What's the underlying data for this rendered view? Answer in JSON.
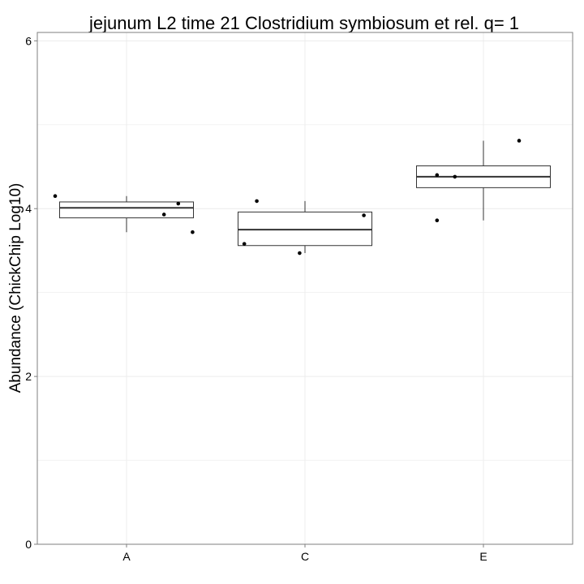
{
  "chart_data": {
    "type": "boxplot",
    "title": "jejunum L2 time 21 Clostridium symbiosum et rel. q= 1",
    "xlabel": "",
    "ylabel": "Abundance (ChickChip Log10)",
    "ylim": [
      0,
      6.1
    ],
    "yticks": [
      0,
      2,
      4,
      6
    ],
    "grid": true,
    "categories": [
      "A",
      "C",
      "E"
    ],
    "boxes": [
      {
        "category": "A",
        "whisker_low": 3.72,
        "q1": 3.89,
        "median": 4.01,
        "q3": 4.08,
        "whisker_high": 4.15
      },
      {
        "category": "C",
        "whisker_low": 3.47,
        "q1": 3.56,
        "median": 3.75,
        "q3": 3.96,
        "whisker_high": 4.09
      },
      {
        "category": "E",
        "whisker_low": 3.86,
        "q1": 4.25,
        "median": 4.38,
        "q3": 4.51,
        "whisker_high": 4.81
      }
    ],
    "points": [
      {
        "category": "A",
        "offset": -0.4,
        "y": 4.15
      },
      {
        "category": "A",
        "offset": 0.21,
        "y": 3.93
      },
      {
        "category": "A",
        "offset": 0.29,
        "y": 4.06
      },
      {
        "category": "A",
        "offset": 0.37,
        "y": 3.72
      },
      {
        "category": "C",
        "offset": -0.34,
        "y": 3.58
      },
      {
        "category": "C",
        "offset": -0.27,
        "y": 4.09
      },
      {
        "category": "C",
        "offset": -0.03,
        "y": 3.47
      },
      {
        "category": "C",
        "offset": 0.33,
        "y": 3.92
      },
      {
        "category": "E",
        "offset": -0.26,
        "y": 3.86
      },
      {
        "category": "E",
        "offset": -0.26,
        "y": 4.4
      },
      {
        "category": "E",
        "offset": -0.16,
        "y": 4.38
      },
      {
        "category": "E",
        "offset": 0.2,
        "y": 4.81
      }
    ],
    "colors": {
      "panel_border": "#7f7f7f",
      "grid": "#ececec",
      "box": "#333333",
      "point": "#000000"
    }
  }
}
